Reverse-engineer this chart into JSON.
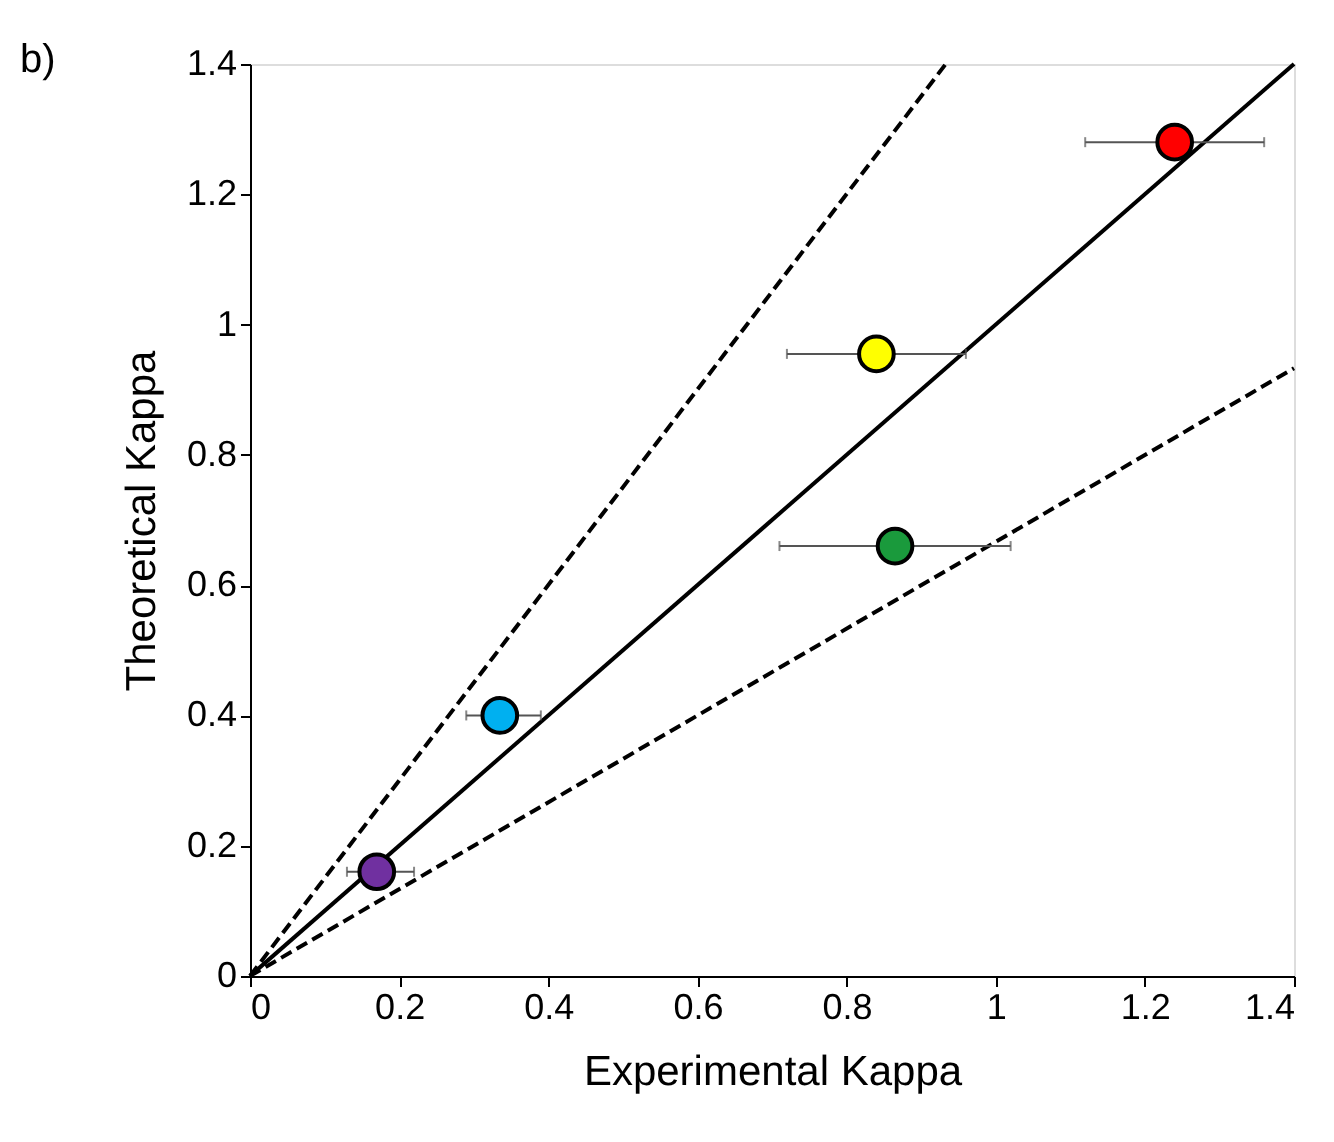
{
  "chart_data": {
    "type": "scatter",
    "xlabel": "Experimental Kappa",
    "ylabel": "Theoretical Kappa",
    "annotations": [
      "b)"
    ],
    "xlim": [
      0,
      1.4
    ],
    "ylim": [
      0,
      1.4
    ],
    "xticks": [
      0,
      0.2,
      0.4,
      0.6,
      0.8,
      1,
      1.2,
      1.4
    ],
    "yticks": [
      0,
      0.2,
      0.4,
      0.6,
      0.8,
      1,
      1.2,
      1.4
    ],
    "grid": false,
    "legend": false,
    "series": [
      {
        "type": "line",
        "x": [
          0,
          1.4
        ],
        "values": [
          0,
          1.4
        ],
        "color": "#000000",
        "line_style": "solid"
      },
      {
        "type": "line",
        "x": [
          0,
          0.933
        ],
        "values": [
          0,
          1.4
        ],
        "color": "#000000",
        "line_style": "dashed"
      },
      {
        "type": "line",
        "x": [
          0,
          1.4
        ],
        "values": [
          0,
          0.933
        ],
        "color": "#000000",
        "line_style": "dashed"
      },
      {
        "marker": "circle",
        "x": [
          1.24,
          0.84,
          0.865,
          0.335,
          0.17
        ],
        "values": [
          1.28,
          0.955,
          0.66,
          0.4,
          0.16
        ],
        "colors": [
          "#ff0000",
          "#ffff00",
          "#1a9a3c",
          "#00b0f0",
          "#7030a0"
        ],
        "xerrors": [
          [
            1.12,
            1.36
          ],
          [
            0.72,
            0.96
          ],
          [
            0.71,
            1.02
          ],
          [
            0.29,
            0.39
          ],
          [
            0.13,
            0.22
          ]
        ]
      }
    ]
  }
}
